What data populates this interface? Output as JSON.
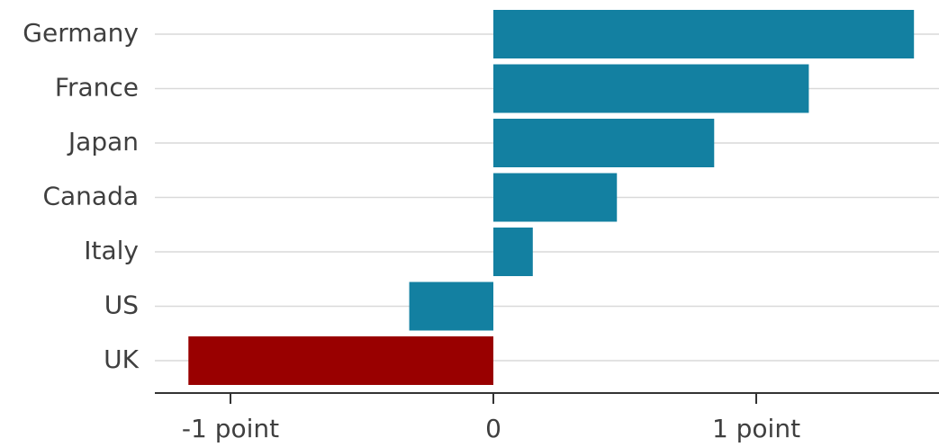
{
  "chart_data": {
    "type": "bar",
    "orientation": "horizontal",
    "title": "",
    "xlabel": "",
    "ylabel": "",
    "categories": [
      "Germany",
      "France",
      "Japan",
      "Canada",
      "Italy",
      "US",
      "UK"
    ],
    "values": [
      1.6,
      1.2,
      0.84,
      0.47,
      0.15,
      -0.32,
      -1.16
    ],
    "bar_colors": [
      "#1380a1",
      "#1380a1",
      "#1380a1",
      "#1380a1",
      "#1380a1",
      "#1380a1",
      "#990000"
    ],
    "xlim": [
      -1.3,
      1.7
    ],
    "x_ticks": [
      {
        "value": -1,
        "label": "-1 point"
      },
      {
        "value": 0,
        "label": "0"
      },
      {
        "value": 1,
        "label": "1 point"
      }
    ],
    "grid": "horizontal",
    "legend": "none"
  },
  "colors": {
    "primary": "#1380a1",
    "highlight": "#990000"
  }
}
